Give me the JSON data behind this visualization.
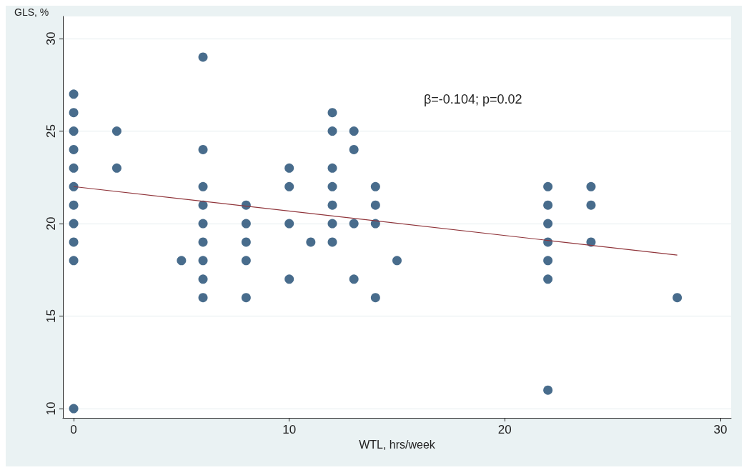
{
  "chart_data": {
    "type": "scatter",
    "xlabel": "WTL, hrs/week",
    "ylabel": "GLS, %",
    "annotations": [
      "β=-0.104; p=0.02"
    ],
    "xlim": [
      -0.5,
      30.5
    ],
    "xticks": [
      0,
      10,
      20,
      30
    ],
    "ylim": [
      9.5,
      31.2
    ],
    "yticks": [
      10,
      15,
      20,
      25,
      30
    ],
    "grid": "y",
    "marker": "circle",
    "series": [
      {
        "color": "#1a476f",
        "x": [
          0,
          0,
          0,
          0,
          0,
          0,
          0,
          0,
          0,
          0,
          0,
          2,
          2,
          5,
          6,
          6,
          6,
          6,
          6,
          6,
          6,
          6,
          6,
          8,
          8,
          8,
          8,
          8,
          10,
          10,
          10,
          10,
          11,
          12,
          12,
          12,
          12,
          12,
          12,
          12,
          13,
          13,
          13,
          13,
          14,
          14,
          14,
          14,
          15,
          22,
          22,
          22,
          22,
          22,
          22,
          22,
          24,
          24,
          24,
          28
        ],
        "values": [
          27,
          26,
          25,
          24,
          23,
          22,
          21,
          20,
          19,
          18,
          10,
          25,
          23,
          18,
          29,
          24,
          22,
          21,
          20,
          19,
          18,
          17,
          16,
          21,
          20,
          19,
          18,
          16,
          23,
          22,
          20,
          17,
          19,
          26,
          25,
          23,
          22,
          21,
          20,
          19,
          25,
          24,
          20,
          17,
          22,
          21,
          20,
          16,
          18,
          22,
          21,
          20,
          19,
          18,
          17,
          11,
          22,
          21,
          19,
          16
        ]
      },
      {
        "type": "line",
        "color": "#90353b",
        "x": [
          0,
          28
        ],
        "values": [
          22,
          18.3
        ],
        "marker": "none"
      }
    ]
  }
}
